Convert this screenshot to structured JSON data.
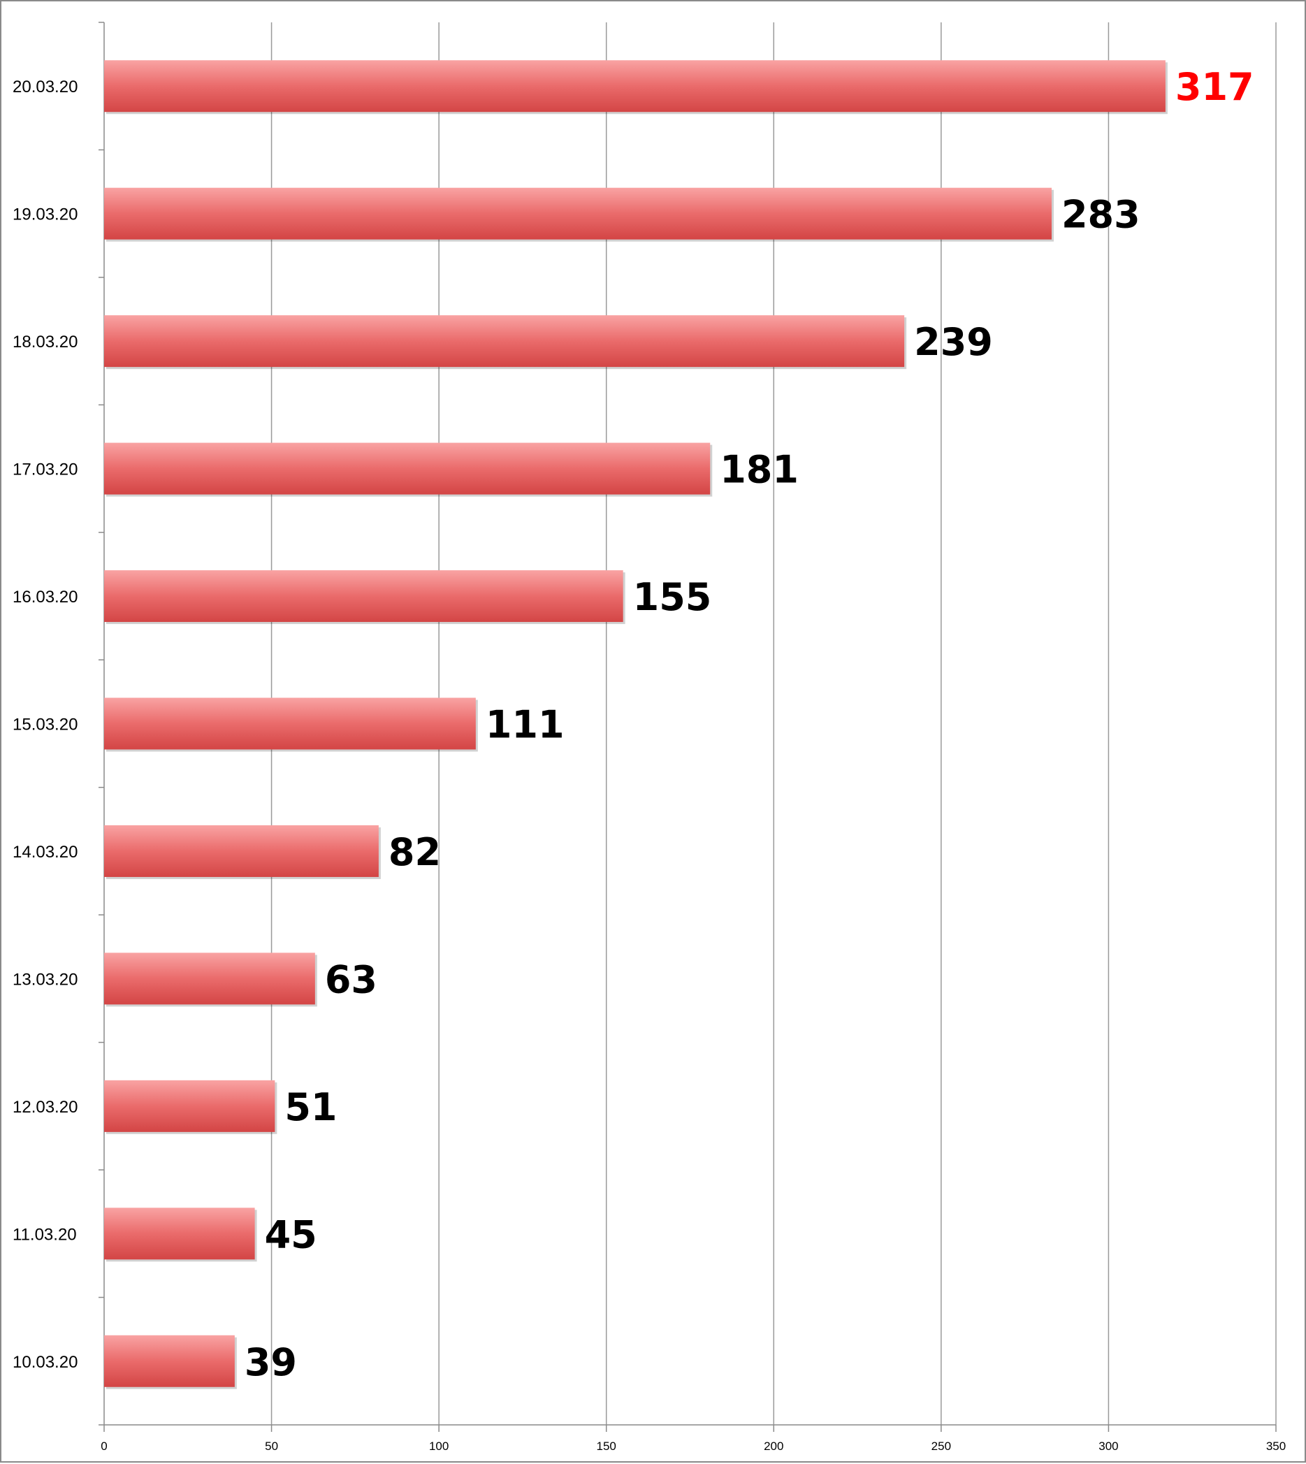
{
  "chart_data": {
    "type": "bar",
    "orientation": "horizontal",
    "categories": [
      "10.03.20",
      "11.03.20",
      "12.03.20",
      "13.03.20",
      "14.03.20",
      "15.03.20",
      "16.03.20",
      "17.03.20",
      "18.03.20",
      "19.03.20",
      "20.03.20"
    ],
    "values": [
      39,
      45,
      51,
      63,
      82,
      111,
      155,
      181,
      239,
      283,
      317
    ],
    "data_labels": [
      "39",
      "45",
      "51",
      "63",
      "82",
      "111",
      "155",
      "181",
      "239",
      "283",
      "317"
    ],
    "x_ticks": [
      "0",
      "50",
      "100",
      "150",
      "200",
      "250",
      "300",
      "350"
    ],
    "xlim": [
      0,
      350
    ],
    "grid": "vertical",
    "legend": "none",
    "title": "",
    "xlabel": "",
    "ylabel": ""
  },
  "colors": {
    "bar_top": "#f9a3a3",
    "bar_mid": "#ea6b6b",
    "bar_bottom": "#d34545",
    "grid": "#9a9a9a",
    "axis": "#8a8a8a",
    "label": "#000000",
    "highlight_label": "#ff0000"
  }
}
